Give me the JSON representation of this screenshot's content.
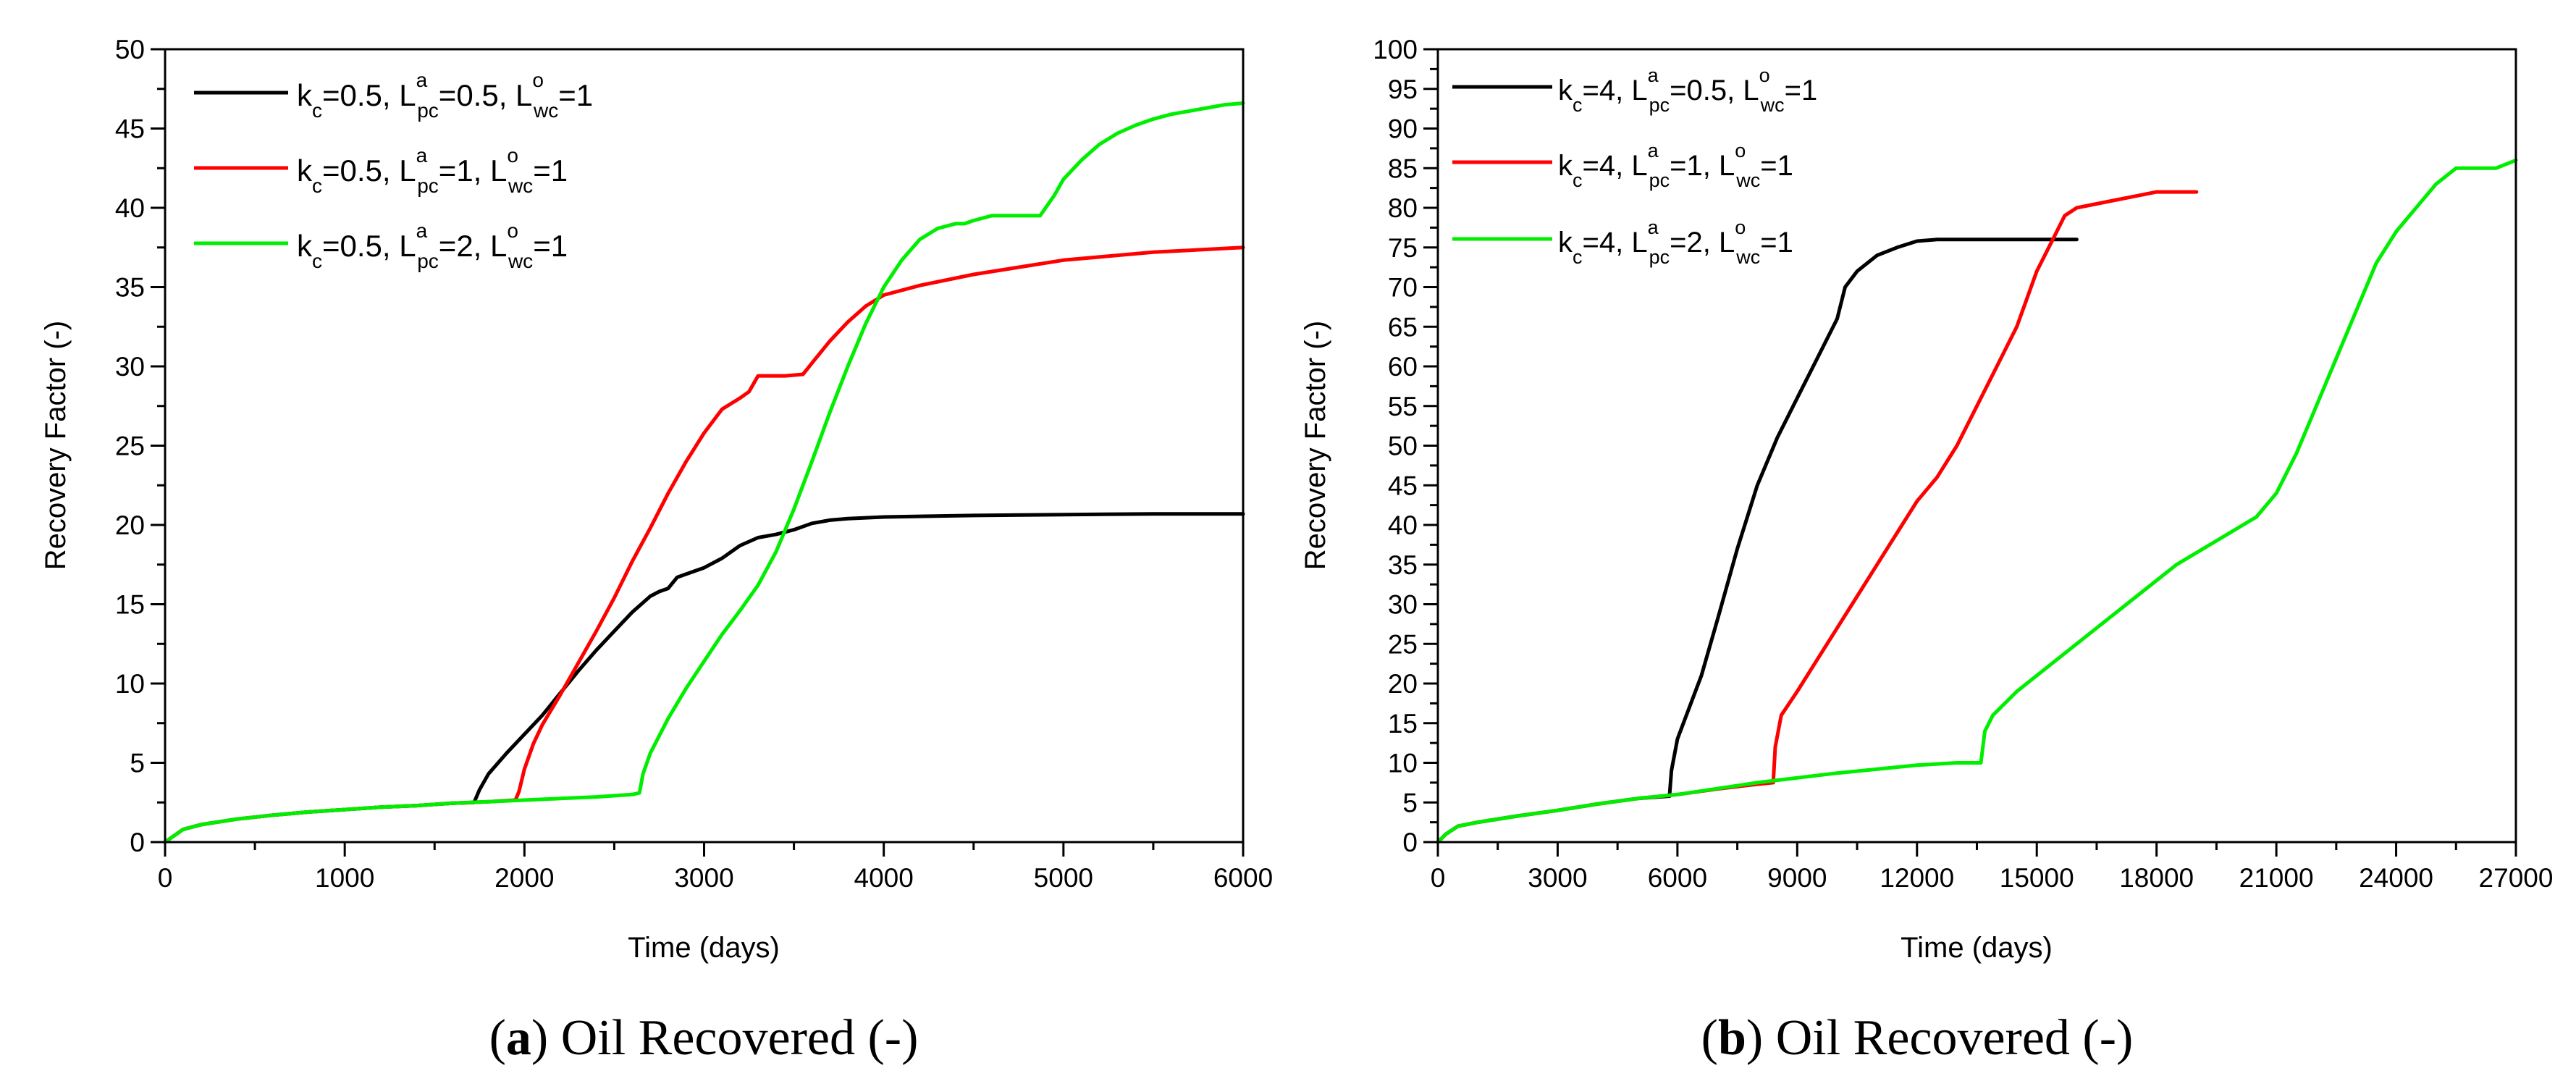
{
  "chart_data": [
    {
      "type": "line",
      "panel_label": "a",
      "caption": "Oil Recovered (-)",
      "xlabel": "Time (days)",
      "ylabel": "Recovery Factor (-)",
      "xlim": [
        0,
        6000
      ],
      "ylim": [
        0,
        50
      ],
      "x_ticks": [
        0,
        1000,
        2000,
        3000,
        4000,
        5000,
        6000
      ],
      "x_tick_labels": [
        "0",
        "1000",
        "2000",
        "3000",
        "4000",
        "5000",
        "6000"
      ],
      "y_ticks": [
        0,
        5,
        10,
        15,
        20,
        25,
        30,
        35,
        40,
        45,
        50
      ],
      "y_tick_labels": [
        "0",
        "5",
        "10",
        "15",
        "20",
        "25",
        "30",
        "35",
        "40",
        "45",
        "50"
      ],
      "legend_position": "top-left",
      "series": [
        {
          "name": "k_c=0.5, L^a_pc=0.5, L^o_wc=1",
          "legend": {
            "k": "0.5",
            "la": "0.5",
            "lo": "1"
          },
          "color": "#000000",
          "x": [
            0,
            100,
            200,
            400,
            600,
            800,
            1000,
            1200,
            1400,
            1600,
            1720,
            1750,
            1800,
            1900,
            2000,
            2100,
            2200,
            2300,
            2400,
            2500,
            2600,
            2700,
            2750,
            2800,
            2850,
            2900,
            3000,
            3100,
            3200,
            3300,
            3400,
            3500,
            3600,
            3700,
            3800,
            4000,
            4500,
            5000,
            5500,
            6000
          ],
          "y": [
            0,
            0.8,
            1.1,
            1.45,
            1.7,
            1.9,
            2.05,
            2.2,
            2.3,
            2.45,
            2.5,
            3.3,
            4.3,
            5.6,
            6.8,
            8.0,
            9.4,
            10.8,
            12.1,
            13.3,
            14.5,
            15.5,
            15.8,
            16.0,
            16.7,
            16.9,
            17.3,
            17.9,
            18.7,
            19.2,
            19.4,
            19.7,
            20.1,
            20.3,
            20.4,
            20.5,
            20.6,
            20.65,
            20.7,
            20.7
          ]
        },
        {
          "name": "k_c=0.5, L^a_pc=1, L^o_wc=1",
          "legend": {
            "k": "0.5",
            "la": "1",
            "lo": "1"
          },
          "color": "#ff0000",
          "x": [
            0,
            100,
            200,
            400,
            600,
            800,
            1000,
            1200,
            1400,
            1600,
            1800,
            1950,
            1970,
            2000,
            2050,
            2100,
            2200,
            2300,
            2400,
            2500,
            2600,
            2700,
            2800,
            2900,
            3000,
            3100,
            3200,
            3250,
            3300,
            3350,
            3450,
            3550,
            3600,
            3700,
            3800,
            3900,
            4000,
            4200,
            4500,
            5000,
            5500,
            6000
          ],
          "y": [
            0,
            0.8,
            1.1,
            1.45,
            1.7,
            1.9,
            2.05,
            2.2,
            2.3,
            2.45,
            2.55,
            2.65,
            3.2,
            4.6,
            6.2,
            7.4,
            9.3,
            11.3,
            13.3,
            15.4,
            17.7,
            19.8,
            22.0,
            24.0,
            25.8,
            27.3,
            28.0,
            28.4,
            29.4,
            29.4,
            29.4,
            29.5,
            30.2,
            31.6,
            32.8,
            33.8,
            34.5,
            35.1,
            35.8,
            36.7,
            37.2,
            37.5
          ]
        },
        {
          "name": "k_c=0.5, L^a_pc=2, L^o_wc=1",
          "legend": {
            "k": "0.5",
            "la": "2",
            "lo": "1"
          },
          "color": "#00ee00",
          "x": [
            0,
            100,
            200,
            400,
            600,
            800,
            1000,
            1200,
            1400,
            1600,
            1800,
            2000,
            2200,
            2400,
            2600,
            2640,
            2660,
            2700,
            2800,
            2900,
            3000,
            3100,
            3200,
            3300,
            3400,
            3500,
            3600,
            3700,
            3800,
            3900,
            4000,
            4100,
            4200,
            4300,
            4400,
            4450,
            4500,
            4600,
            4700,
            4800,
            4870,
            4950,
            5000,
            5100,
            5200,
            5300,
            5400,
            5500,
            5600,
            5700,
            5800,
            5900,
            6000
          ],
          "y": [
            0,
            0.8,
            1.1,
            1.45,
            1.7,
            1.9,
            2.05,
            2.2,
            2.3,
            2.45,
            2.55,
            2.65,
            2.75,
            2.85,
            3.0,
            3.1,
            4.3,
            5.6,
            7.8,
            9.7,
            11.4,
            13.1,
            14.6,
            16.2,
            18.3,
            21.0,
            24.0,
            27.1,
            30.0,
            32.7,
            35.0,
            36.7,
            38.0,
            38.7,
            39.0,
            39.0,
            39.2,
            39.5,
            39.5,
            39.5,
            39.5,
            40.8,
            41.8,
            43.0,
            44.0,
            44.7,
            45.2,
            45.6,
            45.9,
            46.1,
            46.3,
            46.5,
            46.6
          ]
        }
      ]
    },
    {
      "type": "line",
      "panel_label": "b",
      "caption": "Oil Recovered (-)",
      "xlabel": "Time (days)",
      "ylabel": "Recovery Factor (-)",
      "xlim": [
        0,
        27000
      ],
      "ylim": [
        0,
        100
      ],
      "x_ticks": [
        0,
        3000,
        6000,
        9000,
        12000,
        15000,
        18000,
        21000,
        24000,
        27000
      ],
      "x_tick_labels": [
        "0",
        "3000",
        "6000",
        "9000",
        "12000",
        "15000",
        "18000",
        "21000",
        "24000",
        "27000"
      ],
      "y_ticks": [
        0,
        5,
        10,
        15,
        20,
        25,
        30,
        35,
        40,
        45,
        50,
        55,
        60,
        65,
        70,
        75,
        80,
        85,
        90,
        95,
        100
      ],
      "y_tick_labels": [
        "0",
        "5",
        "10",
        "15",
        "20",
        "25",
        "30",
        "35",
        "40",
        "45",
        "50",
        "55",
        "60",
        "65",
        "70",
        "75",
        "80",
        "85",
        "90",
        "95",
        "100"
      ],
      "legend_position": "top-left",
      "series": [
        {
          "name": "k_c=4, L^a_pc=0.5, L^o_wc=1",
          "legend": {
            "k": "4",
            "la": "0.5",
            "lo": "1"
          },
          "color": "#000000",
          "x": [
            0,
            200,
            500,
            1000,
            2000,
            3000,
            4000,
            5000,
            5800,
            5850,
            6000,
            6300,
            6600,
            7000,
            7500,
            8000,
            8500,
            9000,
            9500,
            10000,
            10200,
            10500,
            11000,
            11500,
            12000,
            12500,
            13000,
            14000,
            15000,
            16000
          ],
          "y": [
            0,
            1,
            2,
            2.5,
            3.3,
            4,
            4.8,
            5.5,
            5.8,
            9,
            13,
            17,
            21,
            28,
            37,
            45,
            51,
            56,
            61,
            66,
            70,
            72,
            74,
            75,
            75.8,
            76,
            76,
            76,
            76,
            76
          ]
        },
        {
          "name": "k_c=4, L^a_pc=1, L^o_wc=1",
          "legend": {
            "k": "4",
            "la": "1",
            "lo": "1"
          },
          "color": "#ff0000",
          "x": [
            0,
            200,
            500,
            1000,
            2000,
            3000,
            4000,
            5000,
            6000,
            7000,
            8000,
            8400,
            8450,
            8600,
            9000,
            9500,
            10000,
            10500,
            11000,
            11500,
            12000,
            12500,
            13000,
            13500,
            14000,
            14500,
            15000,
            15300,
            15500,
            15700,
            16000,
            16500,
            17000,
            17500,
            18000,
            19000
          ],
          "y": [
            0,
            1,
            2,
            2.5,
            3.3,
            4,
            4.8,
            5.5,
            6,
            6.7,
            7.3,
            7.5,
            12,
            16,
            19,
            23,
            27,
            31,
            35,
            39,
            43,
            46,
            50,
            55,
            60,
            65,
            72,
            75,
            77,
            79,
            80,
            80.5,
            81,
            81.5,
            82,
            82
          ]
        },
        {
          "name": "k_c=4, L^a_pc=2, L^o_wc=1",
          "legend": {
            "k": "4",
            "la": "2",
            "lo": "1"
          },
          "color": "#00ee00",
          "x": [
            0,
            200,
            500,
            1000,
            2000,
            3000,
            4000,
            5000,
            6000,
            8000,
            10000,
            12000,
            13000,
            13600,
            13700,
            13900,
            14500,
            15500,
            16500,
            17500,
            18500,
            19500,
            20500,
            21000,
            21500,
            22000,
            22500,
            23000,
            23500,
            24000,
            24500,
            25000,
            25500,
            25800,
            26000,
            26500,
            27000
          ],
          "y": [
            0,
            1,
            2,
            2.5,
            3.3,
            4,
            4.8,
            5.5,
            6,
            7.5,
            8.7,
            9.7,
            10,
            10,
            14,
            16,
            19,
            23,
            27,
            31,
            35,
            38,
            41,
            44,
            49,
            55,
            61,
            67,
            73,
            77,
            80,
            83,
            85,
            85,
            85,
            85,
            86
          ]
        }
      ]
    }
  ]
}
